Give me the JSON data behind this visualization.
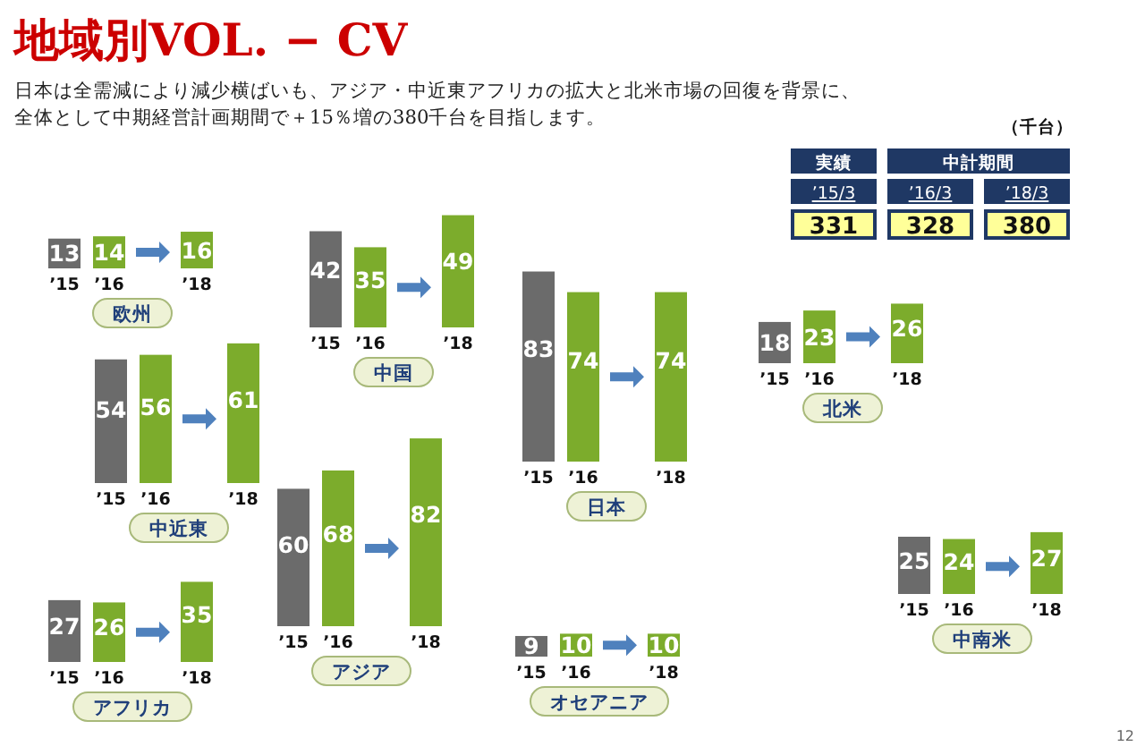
{
  "chart_data": [
    {
      "type": "other",
      "title": "地域別VOL. − CV",
      "subtitle": "日本は全需減により減少横ばいも、アジア・中近東アフリカの拡大と北米市場の回復を背景に、全体として中期経営計画期間で＋15％増の380千台を目指します。",
      "annotations": [
        "12"
      ]
    },
    {
      "type": "other",
      "categories": [
        "’15/3",
        "’16/3",
        "’18/3"
      ],
      "values": [
        331,
        328,
        380
      ],
      "data_labels": true,
      "annotations": [
        "実績",
        "中計期間",
        "（千台）"
      ]
    },
    {
      "type": "bar",
      "title": "欧州",
      "categories": [
        "’15",
        "’16",
        "’18"
      ],
      "values": [
        13,
        14,
        16
      ],
      "colors": [
        "#6b6b6b",
        "#7cac2c",
        "#7cac2c"
      ],
      "data_labels": true
    },
    {
      "type": "bar",
      "title": "中国",
      "categories": [
        "’15",
        "’16",
        "’18"
      ],
      "values": [
        42,
        35,
        49
      ],
      "colors": [
        "#6b6b6b",
        "#7cac2c",
        "#7cac2c"
      ],
      "data_labels": true
    },
    {
      "type": "bar",
      "title": "日本",
      "categories": [
        "’15",
        "’16",
        "’18"
      ],
      "values": [
        83,
        74,
        74
      ],
      "colors": [
        "#6b6b6b",
        "#7cac2c",
        "#7cac2c"
      ],
      "data_labels": true
    },
    {
      "type": "bar",
      "title": "北米",
      "categories": [
        "’15",
        "’16",
        "’18"
      ],
      "values": [
        18,
        23,
        26
      ],
      "colors": [
        "#6b6b6b",
        "#7cac2c",
        "#7cac2c"
      ],
      "data_labels": true
    },
    {
      "type": "bar",
      "title": "中近東",
      "categories": [
        "’15",
        "’16",
        "’18"
      ],
      "values": [
        54,
        56,
        61
      ],
      "colors": [
        "#6b6b6b",
        "#7cac2c",
        "#7cac2c"
      ],
      "data_labels": true
    },
    {
      "type": "bar",
      "title": "アジア",
      "categories": [
        "’15",
        "’16",
        "’18"
      ],
      "values": [
        60,
        68,
        82
      ],
      "colors": [
        "#6b6b6b",
        "#7cac2c",
        "#7cac2c"
      ],
      "data_labels": true
    },
    {
      "type": "bar",
      "title": "アフリカ",
      "categories": [
        "’15",
        "’16",
        "’18"
      ],
      "values": [
        27,
        26,
        35
      ],
      "colors": [
        "#6b6b6b",
        "#7cac2c",
        "#7cac2c"
      ],
      "data_labels": true
    },
    {
      "type": "bar",
      "title": "オセアニア",
      "categories": [
        "’15",
        "’16",
        "’18"
      ],
      "values": [
        9,
        10,
        10
      ],
      "colors": [
        "#6b6b6b",
        "#7cac2c",
        "#7cac2c"
      ],
      "data_labels": true
    },
    {
      "type": "bar",
      "title": "中南米",
      "categories": [
        "’15",
        "’16",
        "’18"
      ],
      "values": [
        25,
        24,
        27
      ],
      "colors": [
        "#6b6b6b",
        "#7cac2c",
        "#7cac2c"
      ],
      "data_labels": true
    }
  ]
}
